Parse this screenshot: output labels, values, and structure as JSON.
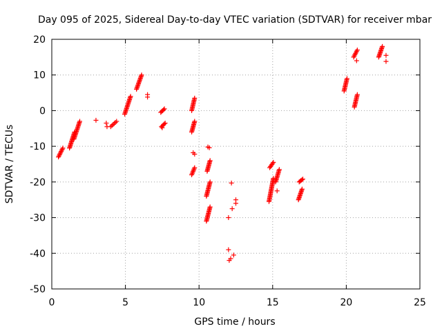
{
  "chart_data": {
    "type": "scatter",
    "title": "Day 095 of 2025, Sidereal Day-to-day VTEC variation (SDTVAR) for receiver mbar",
    "xlabel": "GPS time / hours",
    "ylabel": "SDTVAR / TECUs",
    "xlim": [
      0,
      25
    ],
    "ylim": [
      -50,
      20
    ],
    "x_ticks": [
      0,
      5,
      10,
      15,
      20,
      25
    ],
    "y_ticks": [
      -50,
      -40,
      -30,
      -20,
      -10,
      0,
      10,
      20
    ],
    "x_tick_labels": [
      "0",
      "5",
      "10",
      "15",
      "20",
      "25"
    ],
    "y_tick_labels": [
      "-50",
      "-40",
      "-30",
      "-20",
      "-10",
      "0",
      "10",
      "20"
    ],
    "grid": true,
    "marker": "+",
    "color": "#ff0000",
    "segments": [
      {
        "x": [
          0.45,
          0.75
        ],
        "y": [
          -13,
          -10.5
        ]
      },
      {
        "x": [
          1.2,
          1.55
        ],
        "y": [
          -10.5,
          -6
        ]
      },
      {
        "x": [
          1.5,
          1.9
        ],
        "y": [
          -8,
          -3
        ]
      },
      {
        "x": [
          4.0,
          4.4
        ],
        "y": [
          -4.5,
          -3
        ]
      },
      {
        "x": [
          4.95,
          5.35
        ],
        "y": [
          -1,
          4
        ]
      },
      {
        "x": [
          5.75,
          6.1
        ],
        "y": [
          6,
          10
        ]
      },
      {
        "x": [
          7.4,
          7.65
        ],
        "y": [
          -0.5,
          0.5
        ]
      },
      {
        "x": [
          7.45,
          7.7
        ],
        "y": [
          -4.5,
          -3.5
        ]
      },
      {
        "x": [
          9.5,
          9.7
        ],
        "y": [
          0,
          3.5
        ]
      },
      {
        "x": [
          9.5,
          9.7
        ],
        "y": [
          -6,
          -3
        ]
      },
      {
        "x": [
          9.5,
          9.7
        ],
        "y": [
          -18,
          -16
        ]
      },
      {
        "x": [
          10.5,
          10.75
        ],
        "y": [
          -24,
          -20
        ]
      },
      {
        "x": [
          10.5,
          10.75
        ],
        "y": [
          -31,
          -27
        ]
      },
      {
        "x": [
          10.55,
          10.75
        ],
        "y": [
          -17,
          -14
        ]
      },
      {
        "x": [
          14.75,
          15.05
        ],
        "y": [
          -25.5,
          -19
        ]
      },
      {
        "x": [
          14.8,
          15.05
        ],
        "y": [
          -16,
          -14.5
        ]
      },
      {
        "x": [
          15.2,
          15.45
        ],
        "y": [
          -20,
          -16.5
        ]
      },
      {
        "x": [
          16.75,
          17.0
        ],
        "y": [
          -25,
          -22
        ]
      },
      {
        "x": [
          16.8,
          17.05
        ],
        "y": [
          -20,
          -19.2
        ]
      },
      {
        "x": [
          19.85,
          20.05
        ],
        "y": [
          5.5,
          9
        ]
      },
      {
        "x": [
          20.5,
          20.75
        ],
        "y": [
          15,
          17
        ]
      },
      {
        "x": [
          20.55,
          20.75
        ],
        "y": [
          1,
          4.5
        ]
      },
      {
        "x": [
          22.2,
          22.45
        ],
        "y": [
          15,
          18
        ]
      }
    ],
    "points": [
      [
        3.0,
        -2.7
      ],
      [
        3.7,
        -3.5
      ],
      [
        3.75,
        -4.5
      ],
      [
        6.5,
        4.5
      ],
      [
        6.5,
        3.8
      ],
      [
        7.5,
        -4.8
      ],
      [
        9.6,
        -11.8
      ],
      [
        9.7,
        -12.2
      ],
      [
        10.6,
        -10.2
      ],
      [
        10.7,
        -10.4
      ],
      [
        12.0,
        -30.0
      ],
      [
        12.0,
        -39.0
      ],
      [
        12.05,
        -42.0
      ],
      [
        12.15,
        -41.5
      ],
      [
        12.2,
        -20.3
      ],
      [
        12.25,
        -27.5
      ],
      [
        12.35,
        -40.5
      ],
      [
        12.5,
        -25.0
      ],
      [
        12.5,
        -26.0
      ],
      [
        15.3,
        -22.5
      ],
      [
        20.7,
        14.0
      ],
      [
        22.7,
        15.5
      ],
      [
        22.7,
        13.8
      ]
    ]
  }
}
